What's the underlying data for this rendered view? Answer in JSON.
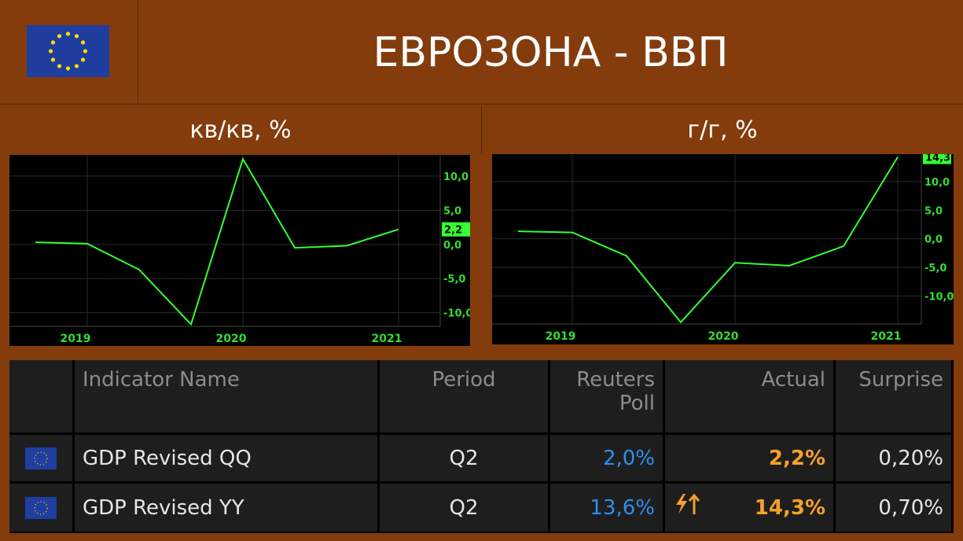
{
  "header": {
    "title": "ЕВРОЗОНА - ВВП",
    "panels": [
      "кв/кв,  %",
      "г/г, %"
    ]
  },
  "chart_data": [
    {
      "type": "line",
      "grid": true,
      "color": "#33ff33",
      "categories": [
        null,
        "2019",
        null,
        null,
        "2020",
        null,
        null,
        "2021"
      ],
      "values": [
        0.3,
        0.1,
        -3.7,
        -11.7,
        12.5,
        -0.5,
        -0.2,
        2.2
      ],
      "value_labels": [
        null,
        null,
        null,
        null,
        null,
        null,
        null,
        "2,2"
      ],
      "ylim": [
        -12,
        13.1
      ],
      "yticks": [
        {
          "value": 10,
          "label": "10,0"
        },
        {
          "value": 5,
          "label": "5,0"
        },
        {
          "value": 0,
          "label": "0,0"
        },
        {
          "value": -5,
          "label": "-5,0"
        },
        {
          "value": -10,
          "label": "-10,0"
        }
      ]
    },
    {
      "type": "line",
      "grid": true,
      "color": "#33ff33",
      "categories": [
        null,
        "2019",
        null,
        null,
        "2020",
        null,
        null,
        "2021"
      ],
      "values": [
        1.3,
        1.1,
        -3.0,
        -14.6,
        -4.2,
        -4.7,
        -1.3,
        14.3
      ],
      "value_labels": [
        null,
        null,
        null,
        null,
        null,
        null,
        null,
        "14,3"
      ],
      "ylim": [
        -14.9,
        14.8
      ],
      "yticks": [
        {
          "value": 10,
          "label": "10,0"
        },
        {
          "value": 5,
          "label": "5,0"
        },
        {
          "value": 0,
          "label": "0,0"
        },
        {
          "value": -5,
          "label": "-5,0"
        },
        {
          "value": -10,
          "label": "-10,0"
        }
      ]
    }
  ],
  "table": {
    "columns": [
      "Indicator Name",
      "Period",
      "Reuters Poll",
      "Actual",
      "Surprise"
    ],
    "rows": [
      [
        "GDP Revised QQ",
        "Q2",
        "2,0%",
        "2,2%",
        "0,20%"
      ],
      [
        "GDP Revised YY",
        "Q2",
        "13,6%",
        "14,3%",
        "0,70%"
      ]
    ]
  }
}
